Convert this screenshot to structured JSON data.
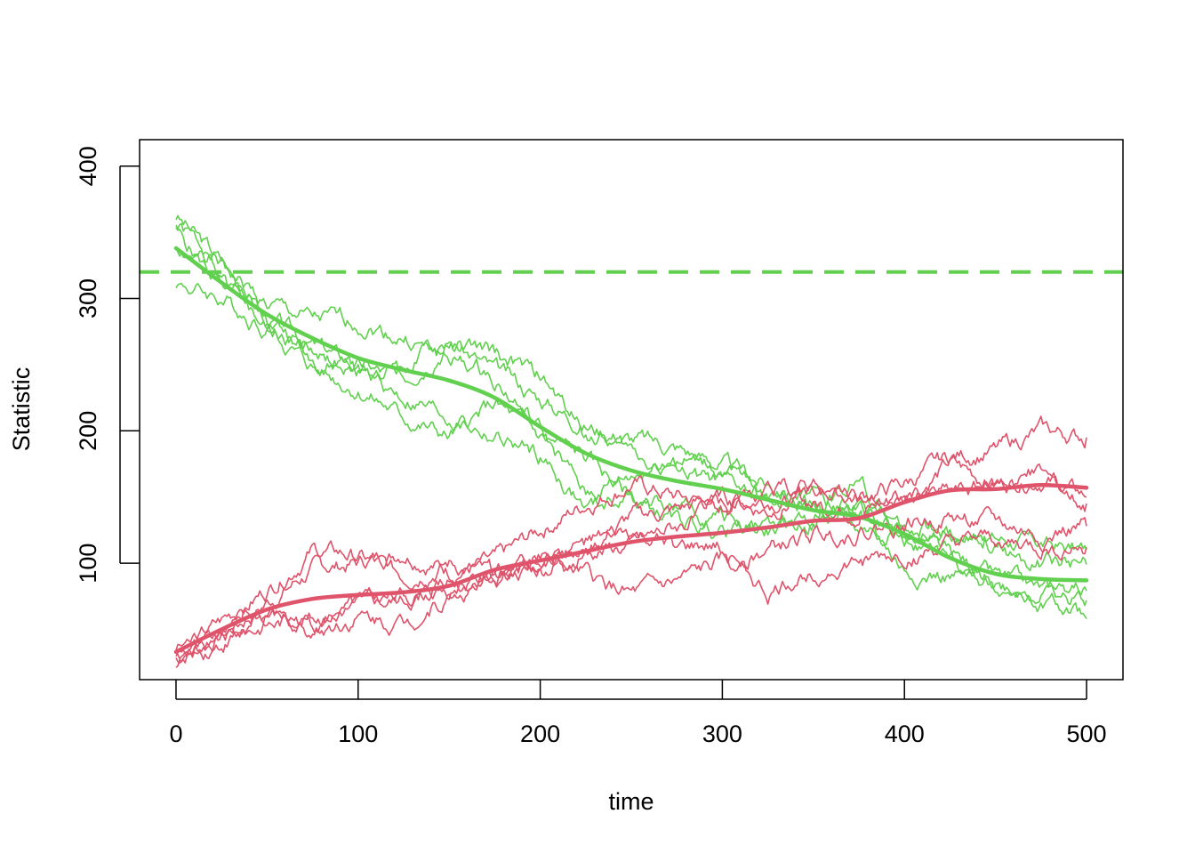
{
  "chart_data": {
    "type": "line",
    "title": "",
    "xlabel": "time",
    "ylabel": "Statistic",
    "xlim": [
      -20,
      520
    ],
    "ylim": [
      12,
      420
    ],
    "x_ticks": [
      0,
      100,
      200,
      300,
      400,
      500
    ],
    "x_tick_labels": [
      "0",
      "100",
      "200",
      "300",
      "400",
      "500"
    ],
    "y_ticks": [
      100,
      200,
      300,
      400
    ],
    "y_tick_labels": [
      "100",
      "200",
      "300",
      "400"
    ],
    "grid": false,
    "legend": "none",
    "colors": {
      "green": "#61D04F",
      "red": "#DF536B"
    },
    "reference_line": {
      "y": 320,
      "color": "#61D04F",
      "style": "dashed"
    },
    "smooth_series": [
      {
        "color": "#61D04F",
        "x": [
          0,
          25,
          50,
          75,
          100,
          125,
          150,
          175,
          200,
          225,
          250,
          275,
          300,
          325,
          350,
          375,
          400,
          425,
          450,
          475,
          500
        ],
        "y": [
          338,
          312,
          288,
          270,
          255,
          246,
          238,
          225,
          203,
          183,
          170,
          162,
          156,
          148,
          140,
          135,
          122,
          104,
          92,
          88,
          87
        ]
      },
      {
        "color": "#DF536B",
        "x": [
          0,
          25,
          50,
          75,
          100,
          125,
          150,
          175,
          200,
          225,
          250,
          275,
          300,
          325,
          350,
          375,
          400,
          425,
          450,
          475,
          500
        ],
        "y": [
          33,
          50,
          65,
          73,
          76,
          78,
          83,
          95,
          102,
          109,
          116,
          120,
          123,
          127,
          132,
          134,
          146,
          155,
          156,
          159,
          157
        ]
      }
    ],
    "series": [
      {
        "color": "#61D04F",
        "x": [
          0,
          25,
          50,
          75,
          100,
          125,
          150,
          175,
          200,
          225,
          250,
          275,
          300,
          325,
          350,
          375,
          400,
          425,
          450,
          475,
          500
        ],
        "y": [
          355,
          325,
          295,
          283,
          282,
          270,
          255,
          240,
          200,
          150,
          165,
          180,
          170,
          150,
          145,
          130,
          120,
          118,
          110,
          100,
          99
        ]
      },
      {
        "color": "#61D04F",
        "x": [
          0,
          25,
          50,
          75,
          100,
          125,
          150,
          175,
          200,
          225,
          250,
          275,
          300,
          325,
          350,
          375,
          400,
          425,
          450,
          475,
          500
        ],
        "y": [
          340,
          320,
          290,
          255,
          242,
          250,
          265,
          258,
          240,
          200,
          185,
          170,
          160,
          150,
          140,
          138,
          130,
          125,
          120,
          115,
          110
        ]
      },
      {
        "color": "#61D04F",
        "x": [
          0,
          25,
          50,
          75,
          100,
          125,
          150,
          175,
          200,
          225,
          250,
          275,
          300,
          325,
          350,
          375,
          400,
          425,
          450,
          475,
          500
        ],
        "y": [
          362,
          328,
          285,
          265,
          250,
          240,
          270,
          245,
          225,
          205,
          195,
          188,
          175,
          160,
          150,
          140,
          125,
          105,
          90,
          80,
          72
        ]
      },
      {
        "color": "#61D04F",
        "x": [
          0,
          25,
          50,
          75,
          100,
          125,
          150,
          175,
          200,
          225,
          250,
          275,
          300,
          325,
          350,
          375,
          400,
          425,
          450,
          475,
          500
        ],
        "y": [
          312,
          300,
          278,
          262,
          245,
          225,
          210,
          195,
          180,
          140,
          150,
          140,
          132,
          128,
          130,
          165,
          120,
          100,
          80,
          70,
          58
        ]
      },
      {
        "color": "#61D04F",
        "x": [
          0,
          25,
          50,
          75,
          100,
          125,
          150,
          175,
          200,
          225,
          250,
          275,
          300,
          325,
          350,
          375,
          400,
          425,
          450,
          475,
          500
        ],
        "y": [
          350,
          310,
          278,
          248,
          232,
          210,
          195,
          220,
          195,
          180,
          150,
          130,
          125,
          125,
          130,
          140,
          95,
          90,
          85,
          80,
          79
        ]
      },
      {
        "color": "#DF536B",
        "x": [
          0,
          25,
          50,
          75,
          100,
          125,
          150,
          175,
          200,
          225,
          250,
          275,
          300,
          325,
          350,
          375,
          400,
          425,
          450,
          475,
          500
        ],
        "y": [
          30,
          55,
          80,
          110,
          105,
          90,
          100,
          90,
          95,
          110,
          135,
          140,
          150,
          140,
          155,
          150,
          160,
          180,
          185,
          200,
          195
        ]
      },
      {
        "color": "#DF536B",
        "x": [
          0,
          25,
          50,
          75,
          100,
          125,
          150,
          175,
          200,
          225,
          250,
          275,
          300,
          325,
          350,
          375,
          400,
          425,
          450,
          475,
          500
        ],
        "y": [
          28,
          45,
          70,
          95,
          100,
          110,
          95,
          100,
          125,
          145,
          160,
          150,
          145,
          150,
          145,
          140,
          150,
          175,
          160,
          165,
          150
        ]
      },
      {
        "color": "#DF536B",
        "x": [
          0,
          25,
          50,
          75,
          100,
          125,
          150,
          175,
          200,
          225,
          250,
          275,
          300,
          325,
          350,
          375,
          400,
          425,
          450,
          475,
          500
        ],
        "y": [
          35,
          50,
          60,
          55,
          65,
          70,
          80,
          95,
          100,
          90,
          75,
          85,
          100,
          110,
          120,
          125,
          130,
          135,
          130,
          120,
          128
        ]
      },
      {
        "color": "#DF536B",
        "x": [
          0,
          25,
          50,
          75,
          100,
          125,
          150,
          175,
          200,
          225,
          250,
          275,
          300,
          325,
          350,
          375,
          400,
          425,
          450,
          475,
          500
        ],
        "y": [
          32,
          42,
          55,
          60,
          70,
          75,
          85,
          90,
          100,
          110,
          115,
          130,
          140,
          150,
          160,
          145,
          150,
          155,
          160,
          170,
          145
        ]
      },
      {
        "color": "#DF536B",
        "x": [
          0,
          25,
          50,
          75,
          100,
          125,
          150,
          175,
          200,
          225,
          250,
          275,
          300,
          325,
          350,
          375,
          400,
          425,
          450,
          475,
          500
        ],
        "y": [
          25,
          40,
          58,
          50,
          60,
          55,
          75,
          85,
          105,
          115,
          120,
          110,
          110,
          75,
          95,
          100,
          105,
          110,
          115,
          110,
          112
        ]
      }
    ]
  }
}
